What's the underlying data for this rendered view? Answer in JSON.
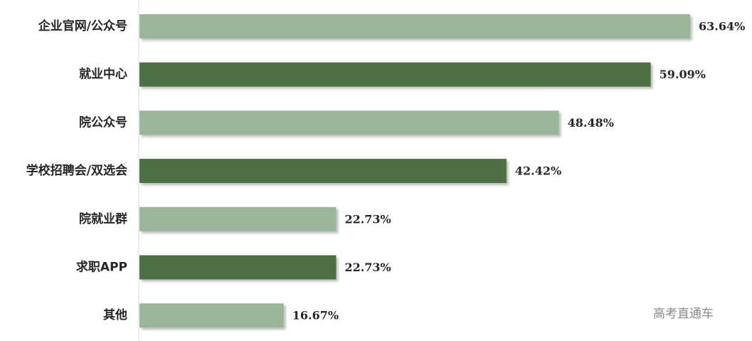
{
  "chart_data": {
    "type": "bar",
    "orientation": "horizontal",
    "categories": [
      "企业官网/公众号",
      "就业中心",
      "院公众号",
      "学校招聘会/双选会",
      "院就业群",
      "求职APP",
      "其他"
    ],
    "values": [
      63.64,
      59.09,
      48.48,
      42.42,
      22.73,
      22.73,
      16.67
    ],
    "value_labels": [
      "63.64%",
      "59.09%",
      "48.48%",
      "42.42%",
      "22.73%",
      "22.73%",
      "16.67%"
    ],
    "xlim": [
      0,
      65
    ],
    "grid": false,
    "bar_colors": [
      "#9bb59a",
      "#4d6f45",
      "#9bb59a",
      "#4d6f45",
      "#9bb59a",
      "#4d6f45",
      "#9bb59a"
    ]
  },
  "watermark": "高考直通车"
}
